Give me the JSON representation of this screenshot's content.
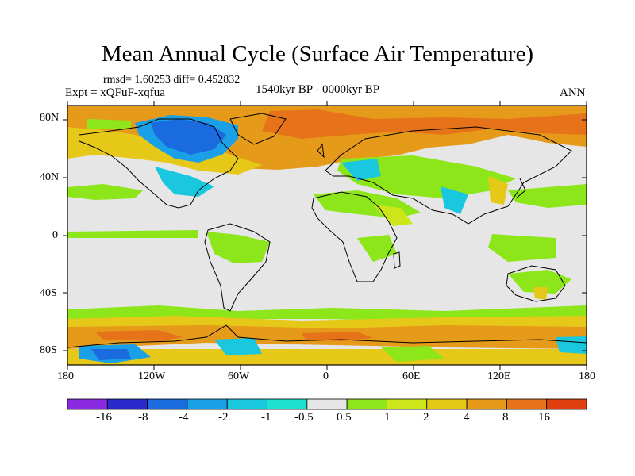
{
  "title": "Mean Annual Cycle (Surface Air Temperature)",
  "stats": "rmsd= 1.60253 diff= 0.452832",
  "experiment": "Expt = xQFuF-xqfua",
  "period": "1540kyr BP - 0000kyr BP",
  "season": "ANN",
  "lat_labels": [
    "80N",
    "40N",
    "0",
    "40S",
    "80S"
  ],
  "lon_labels": [
    "180",
    "120W",
    "60W",
    "0",
    "60E",
    "120E",
    "180"
  ],
  "colorbar": {
    "labels": [
      "-16",
      "-8",
      "-4",
      "-2",
      "-1",
      "-0.5",
      "0.5",
      "1",
      "2",
      "4",
      "8",
      "16"
    ],
    "colors": [
      "#8a2be2",
      "#2a2acb",
      "#1a6ae0",
      "#1aa0e6",
      "#19c7de",
      "#1fe1d0",
      "#e6e6e6",
      "#8ce619",
      "#cde619",
      "#e6c819",
      "#e69a19",
      "#e6731a",
      "#e0400f"
    ]
  },
  "palette": {
    "background": "#e6e6e6",
    "coast": "#000000"
  }
}
